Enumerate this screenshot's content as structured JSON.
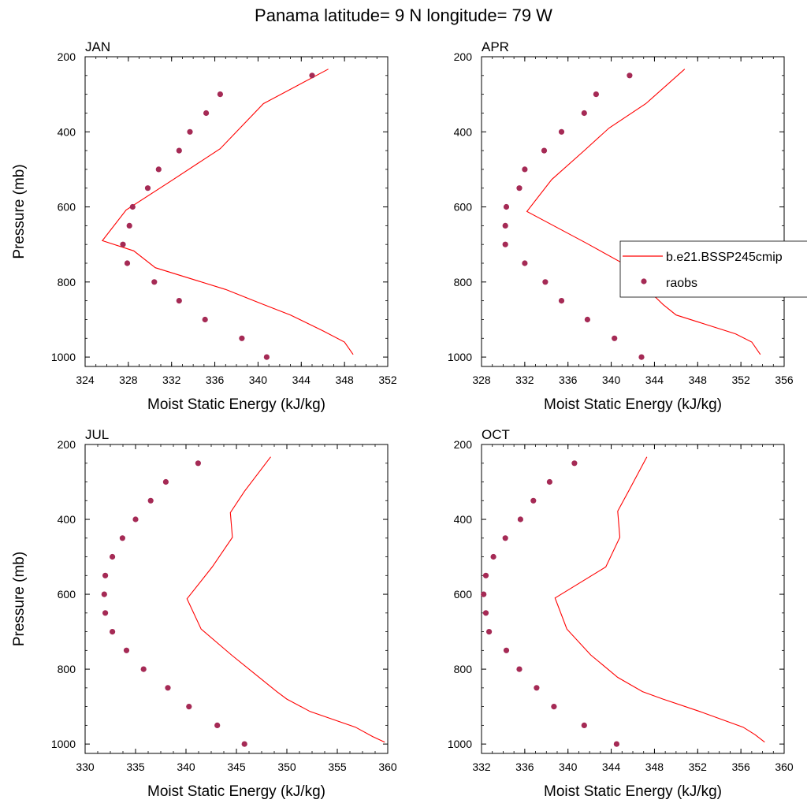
{
  "title": "Panama  latitude= 9 N longitude= 79 W",
  "colors": {
    "model_line": "#ff0000",
    "raobs_marker": "#a52a55",
    "axis": "#000000"
  },
  "legend": {
    "position": "right of APR panel",
    "entries": [
      "b.e21.BSSP245cmip",
      "raobs"
    ]
  },
  "chart_data": [
    {
      "type": "line",
      "panel": "JAN",
      "xlabel": "Moist Static Energy (kJ/kg)",
      "ylabel": "Pressure (mb)",
      "xlim": [
        324,
        352
      ],
      "ylim": [
        1025,
        200
      ],
      "xticks": [
        324,
        328,
        332,
        336,
        340,
        344,
        348,
        352
      ],
      "yticks": [
        200,
        400,
        600,
        800,
        1000
      ],
      "series": [
        {
          "name": "b.e21.BSSP245cmip",
          "style": "line",
          "points": [
            [
              346.5,
              233
            ],
            [
              340.5,
              325
            ],
            [
              336.5,
              445
            ],
            [
              332,
              530
            ],
            [
              327.8,
              608
            ],
            [
              325.6,
              690
            ],
            [
              328.5,
              717
            ],
            [
              330.5,
              762
            ],
            [
              337,
              820
            ],
            [
              340.5,
              860
            ],
            [
              343,
              888
            ],
            [
              346,
              930
            ],
            [
              348,
              960
            ],
            [
              348.8,
              993
            ]
          ]
        },
        {
          "name": "raobs",
          "style": "markers",
          "points": [
            [
              345,
              250
            ],
            [
              336.5,
              300
            ],
            [
              335.2,
              350
            ],
            [
              333.7,
              400
            ],
            [
              332.7,
              450
            ],
            [
              330.8,
              500
            ],
            [
              329.8,
              550
            ],
            [
              328.4,
              600
            ],
            [
              328.1,
              650
            ],
            [
              327.5,
              700
            ],
            [
              327.9,
              750
            ],
            [
              330.4,
              800
            ],
            [
              332.7,
              850
            ],
            [
              335.1,
              900
            ],
            [
              338.5,
              950
            ],
            [
              340.8,
              1000
            ]
          ]
        }
      ]
    },
    {
      "type": "line",
      "panel": "APR",
      "xlabel": "Moist Static Energy (kJ/kg)",
      "ylabel": "",
      "xlim": [
        328,
        356
      ],
      "ylim": [
        1025,
        200
      ],
      "xticks": [
        328,
        332,
        336,
        340,
        344,
        348,
        352,
        356
      ],
      "yticks": [
        200,
        400,
        600,
        800,
        1000
      ],
      "series": [
        {
          "name": "b.e21.BSSP245cmip",
          "style": "line",
          "points": [
            [
              346.8,
              233
            ],
            [
              343.2,
              325
            ],
            [
              339.8,
              390
            ],
            [
              337.5,
              450
            ],
            [
              334.5,
              527
            ],
            [
              332.2,
              612
            ],
            [
              337.6,
              695
            ],
            [
              341.8,
              762
            ],
            [
              343,
              810
            ],
            [
              344.8,
              860
            ],
            [
              346,
              888
            ],
            [
              351.5,
              938
            ],
            [
              353,
              960
            ],
            [
              353.8,
              993
            ]
          ]
        },
        {
          "name": "raobs",
          "style": "markers",
          "points": [
            [
              341.7,
              250
            ],
            [
              338.6,
              300
            ],
            [
              337.5,
              350
            ],
            [
              335.4,
              400
            ],
            [
              333.8,
              450
            ],
            [
              332,
              500
            ],
            [
              331.5,
              550
            ],
            [
              330.3,
              600
            ],
            [
              330.2,
              650
            ],
            [
              330.2,
              700
            ],
            [
              332,
              750
            ],
            [
              333.9,
              800
            ],
            [
              335.4,
              850
            ],
            [
              337.8,
              900
            ],
            [
              340.3,
              950
            ],
            [
              342.8,
              1000
            ]
          ]
        }
      ]
    },
    {
      "type": "line",
      "panel": "JUL",
      "xlabel": "Moist Static Energy (kJ/kg)",
      "ylabel": "Pressure (mb)",
      "xlim": [
        330,
        360
      ],
      "ylim": [
        1025,
        200
      ],
      "xticks": [
        330,
        335,
        340,
        345,
        350,
        355,
        360
      ],
      "yticks": [
        200,
        400,
        600,
        800,
        1000
      ],
      "series": [
        {
          "name": "b.e21.BSSP245cmip",
          "style": "line",
          "points": [
            [
              348.4,
              233
            ],
            [
              345.8,
              325
            ],
            [
              344.4,
              382
            ],
            [
              344.6,
              448
            ],
            [
              342.6,
              527
            ],
            [
              340.1,
              612
            ],
            [
              341.5,
              693
            ],
            [
              344.5,
              762
            ],
            [
              346.7,
              810
            ],
            [
              349,
              860
            ],
            [
              350,
              880
            ],
            [
              352.3,
              913
            ],
            [
              356.8,
              955
            ],
            [
              358.5,
              980
            ],
            [
              359.7,
              995
            ]
          ]
        },
        {
          "name": "raobs",
          "style": "markers",
          "points": [
            [
              341.2,
              250
            ],
            [
              338,
              300
            ],
            [
              336.5,
              350
            ],
            [
              335,
              400
            ],
            [
              333.7,
              450
            ],
            [
              332.7,
              500
            ],
            [
              332,
              550
            ],
            [
              331.9,
              600
            ],
            [
              332,
              650
            ],
            [
              332.7,
              700
            ],
            [
              334.1,
              750
            ],
            [
              335.8,
              800
            ],
            [
              338.2,
              850
            ],
            [
              340.3,
              900
            ],
            [
              343.1,
              950
            ],
            [
              345.8,
              1000
            ]
          ]
        }
      ]
    },
    {
      "type": "line",
      "panel": "OCT",
      "xlabel": "Moist Static Energy (kJ/kg)",
      "ylabel": "",
      "xlim": [
        332,
        360
      ],
      "ylim": [
        1025,
        200
      ],
      "xticks": [
        332,
        336,
        340,
        344,
        348,
        352,
        356,
        360
      ],
      "yticks": [
        200,
        400,
        600,
        800,
        1000
      ],
      "series": [
        {
          "name": "b.e21.BSSP245cmip",
          "style": "line",
          "points": [
            [
              347.3,
              233
            ],
            [
              345.6,
              325
            ],
            [
              344.6,
              378
            ],
            [
              344.8,
              448
            ],
            [
              343.5,
              527
            ],
            [
              338.8,
              610
            ],
            [
              339.9,
              693
            ],
            [
              342.1,
              762
            ],
            [
              344.6,
              822
            ],
            [
              346.9,
              860
            ],
            [
              348.8,
              880
            ],
            [
              352.2,
              913
            ],
            [
              356.2,
              955
            ],
            [
              357.3,
              975
            ],
            [
              358.2,
              995
            ]
          ]
        },
        {
          "name": "raobs",
          "style": "markers",
          "points": [
            [
              340.6,
              250
            ],
            [
              338.3,
              300
            ],
            [
              336.8,
              350
            ],
            [
              335.6,
              400
            ],
            [
              334.2,
              450
            ],
            [
              333.1,
              500
            ],
            [
              332.4,
              550
            ],
            [
              332.2,
              600
            ],
            [
              332.4,
              650
            ],
            [
              332.7,
              700
            ],
            [
              334.3,
              750
            ],
            [
              335.5,
              800
            ],
            [
              337.1,
              850
            ],
            [
              338.7,
              900
            ],
            [
              341.5,
              950
            ],
            [
              344.5,
              1000
            ]
          ]
        }
      ]
    }
  ]
}
